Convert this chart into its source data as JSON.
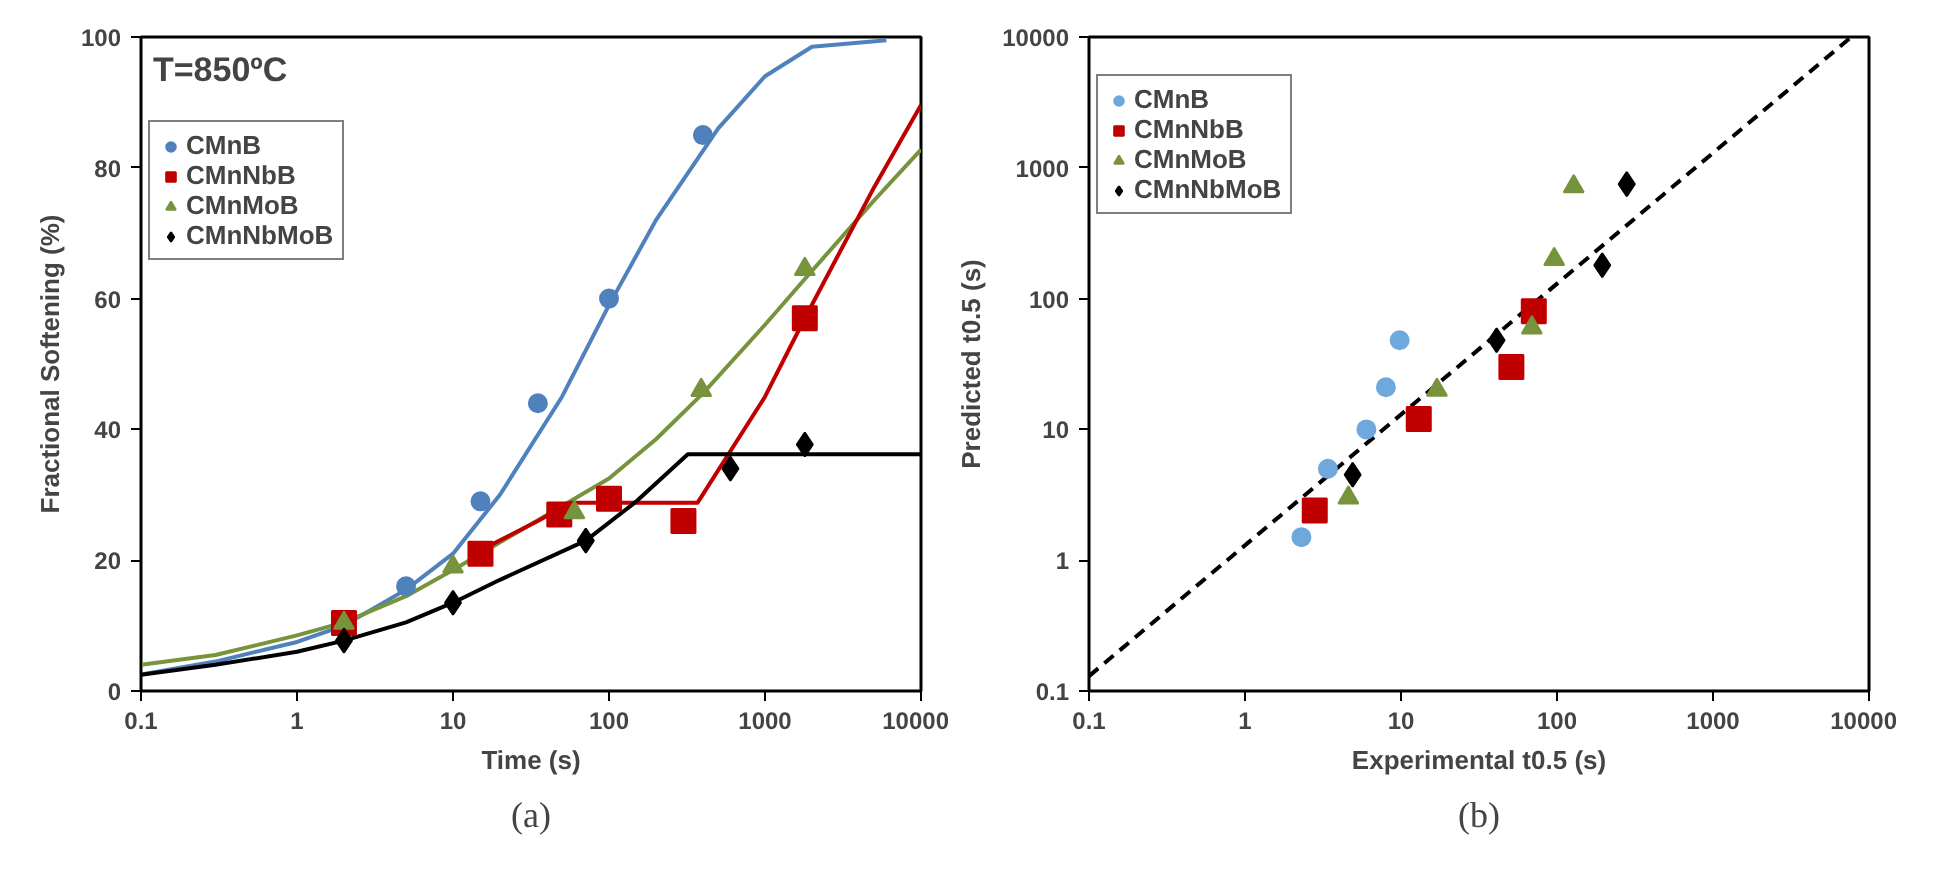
{
  "chart_data": [
    {
      "type": "scatter",
      "xlabel": "Time (s)",
      "ylabel": "Fractional Softening (%)",
      "annotations": [
        "T=850ºC",
        "(a)"
      ],
      "log": "x",
      "xlim": [
        0.1,
        10000
      ],
      "xticks": [
        0.1,
        1,
        10,
        100,
        1000,
        10000
      ],
      "ylim": [
        0,
        100
      ],
      "yticks": [
        0,
        20,
        40,
        60,
        80,
        100
      ],
      "grid": false,
      "legend": "top left",
      "series": [
        {
          "type": "line",
          "color": "#4f81bd",
          "line_style": "solid",
          "marker": "none",
          "x": [
            0.1,
            0.3,
            1,
            2,
            5,
            10,
            20,
            50,
            100,
            200,
            500,
            1000,
            2000,
            6000
          ],
          "values": [
            2.5,
            4.5,
            7.5,
            10,
            15.5,
            21,
            30,
            45,
            59,
            72,
            86,
            94,
            98.5,
            99.5
          ]
        },
        {
          "type": "line",
          "color": "#77933c",
          "line_style": "solid",
          "marker": "none",
          "x": [
            0.1,
            0.3,
            1,
            2,
            5,
            10,
            100,
            200,
            400,
            1000,
            1800,
            5000,
            10000
          ],
          "values": [
            4,
            5.5,
            8.5,
            10.5,
            14.5,
            18.5,
            32.5,
            38.5,
            45.5,
            56,
            63,
            75,
            82.8
          ]
        },
        {
          "type": "line",
          "color": "#c00000",
          "line_style": "solid",
          "marker": "none",
          "x": [
            15,
            35,
            57,
            370,
            1000,
            1800,
            5000,
            10000
          ],
          "values": [
            21.5,
            26,
            28.8,
            28.8,
            45,
            57,
            77,
            89.6
          ]
        },
        {
          "type": "line",
          "color": "#000000",
          "line_style": "solid",
          "marker": "none",
          "x": [
            0.1,
            0.3,
            1,
            2,
            5,
            10,
            20,
            71,
            150,
            320,
            10000
          ],
          "values": [
            2.5,
            4,
            6,
            7.7,
            10.5,
            13.5,
            17,
            23,
            29,
            36.2,
            36.2
          ]
        },
        {
          "name": "CMnB",
          "color": "#4f81bd",
          "marker": "circle",
          "x": [
            5,
            15,
            35,
            100,
            400
          ],
          "values": [
            16,
            29,
            44,
            60,
            85
          ]
        },
        {
          "name": "CMnNbB",
          "color": "#c00000",
          "marker": "square",
          "x": [
            2,
            15,
            48,
            100,
            300,
            1800
          ],
          "values": [
            10.4,
            21,
            27,
            29.4,
            26,
            57
          ]
        },
        {
          "name": "CMnMoB",
          "color": "#77933c",
          "marker": "triangle",
          "x": [
            2,
            10,
            60,
            390,
            1800
          ],
          "values": [
            10.4,
            19,
            27.3,
            46,
            64.5
          ]
        },
        {
          "name": "CMnNbMoB",
          "color": "#000000",
          "marker": "diamond",
          "x": [
            2,
            10,
            71,
            600,
            1800
          ],
          "values": [
            7.7,
            13.5,
            23,
            34,
            37.7
          ]
        }
      ]
    },
    {
      "type": "scatter",
      "xlabel": "Experimental t0.5 (s)",
      "ylabel": "Predicted t0.5 (s)",
      "annotations": [
        "(b)"
      ],
      "log": "xy",
      "xlim": [
        0.1,
        10000
      ],
      "xticks": [
        0.1,
        1,
        10,
        100,
        1000,
        10000
      ],
      "ylim": [
        0.1,
        10000
      ],
      "yticks": [
        0.1,
        1,
        10,
        100,
        1000,
        10000
      ],
      "grid": false,
      "legend": "top left",
      "series": [
        {
          "type": "line",
          "color": "#000000",
          "line_style": "dashed",
          "marker": "none",
          "x": [
            0.1,
            7700
          ],
          "values": [
            0.13,
            10000
          ]
        },
        {
          "name": "CMnB",
          "color": "#6fa8dc",
          "marker": "circle",
          "x": [
            2.3,
            3.4,
            6,
            8,
            9.8
          ],
          "values": [
            1.5,
            5,
            10,
            21,
            48
          ]
        },
        {
          "name": "CMnNbB",
          "color": "#c00000",
          "marker": "square",
          "x": [
            2.8,
            13,
            51,
            71
          ],
          "values": [
            2.4,
            12,
            30,
            80
          ]
        },
        {
          "name": "CMnMoB",
          "color": "#77933c",
          "marker": "triangle",
          "x": [
            4.6,
            17,
            69,
            96,
            128
          ],
          "values": [
            3,
            20,
            60,
            200,
            720
          ]
        },
        {
          "name": "CMnNbMoB",
          "color": "#000000",
          "marker": "diamond",
          "x": [
            4.9,
            41,
            195,
            280
          ],
          "values": [
            4.5,
            48,
            180,
            750
          ]
        }
      ]
    }
  ]
}
